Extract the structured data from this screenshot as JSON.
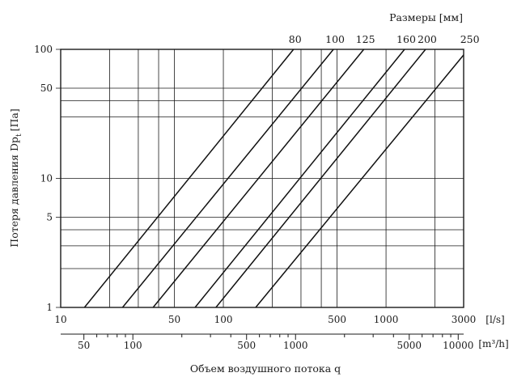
{
  "chart_data": {
    "type": "line",
    "title": "Размеры  [мм]",
    "ylabel_main": "Потеря давления  Dp",
    "ylabel_sub": "t",
    "ylabel_unit": "[Па]",
    "xlabel": "Объем воздушного потока q",
    "x_unit": "[l/s]",
    "x2_unit": "[m³/h]",
    "x_scale": "log",
    "y_scale": "log",
    "xlim": [
      10,
      3000
    ],
    "ylim": [
      1,
      100
    ],
    "x_ticks": [
      10,
      50,
      100,
      500,
      1000,
      3000
    ],
    "x_tick_labels": [
      "10",
      "50",
      "100",
      "500",
      "1000",
      "3000"
    ],
    "y_ticks": [
      1,
      5,
      10,
      50,
      100
    ],
    "y_tick_labels": [
      "1",
      "5",
      "10",
      "50",
      "100"
    ],
    "x_grid": [
      20,
      30,
      40,
      50,
      100,
      200,
      300,
      400,
      500,
      1000,
      2000
    ],
    "y_grid": [
      2,
      3,
      4,
      5,
      10,
      30,
      40,
      50
    ],
    "x2_ticks": [
      50,
      100,
      500,
      1000,
      5000,
      10000
    ],
    "x2_tick_labels": [
      "50",
      "100",
      "500",
      "1000",
      "5000",
      "10000"
    ],
    "x2_minor_ticks": [
      60,
      70,
      80,
      90,
      200,
      300,
      400,
      600,
      700,
      800,
      900,
      2000,
      3000,
      4000,
      6000,
      7000,
      8000,
      9000
    ],
    "series": [
      {
        "name": "80",
        "x": [
          14,
          270
        ],
        "y": [
          1,
          100
        ]
      },
      {
        "name": "100",
        "x": [
          24,
          475
        ],
        "y": [
          1,
          100
        ]
      },
      {
        "name": "125",
        "x": [
          37,
          730
        ],
        "y": [
          1,
          100
        ]
      },
      {
        "name": "160",
        "x": [
          67,
          1300
        ],
        "y": [
          1,
          100
        ]
      },
      {
        "name": "200",
        "x": [
          90,
          1750
        ],
        "y": [
          1,
          100
        ]
      },
      {
        "name": "250",
        "x": [
          158,
          3200
        ],
        "y": [
          1,
          100
        ]
      }
    ]
  }
}
